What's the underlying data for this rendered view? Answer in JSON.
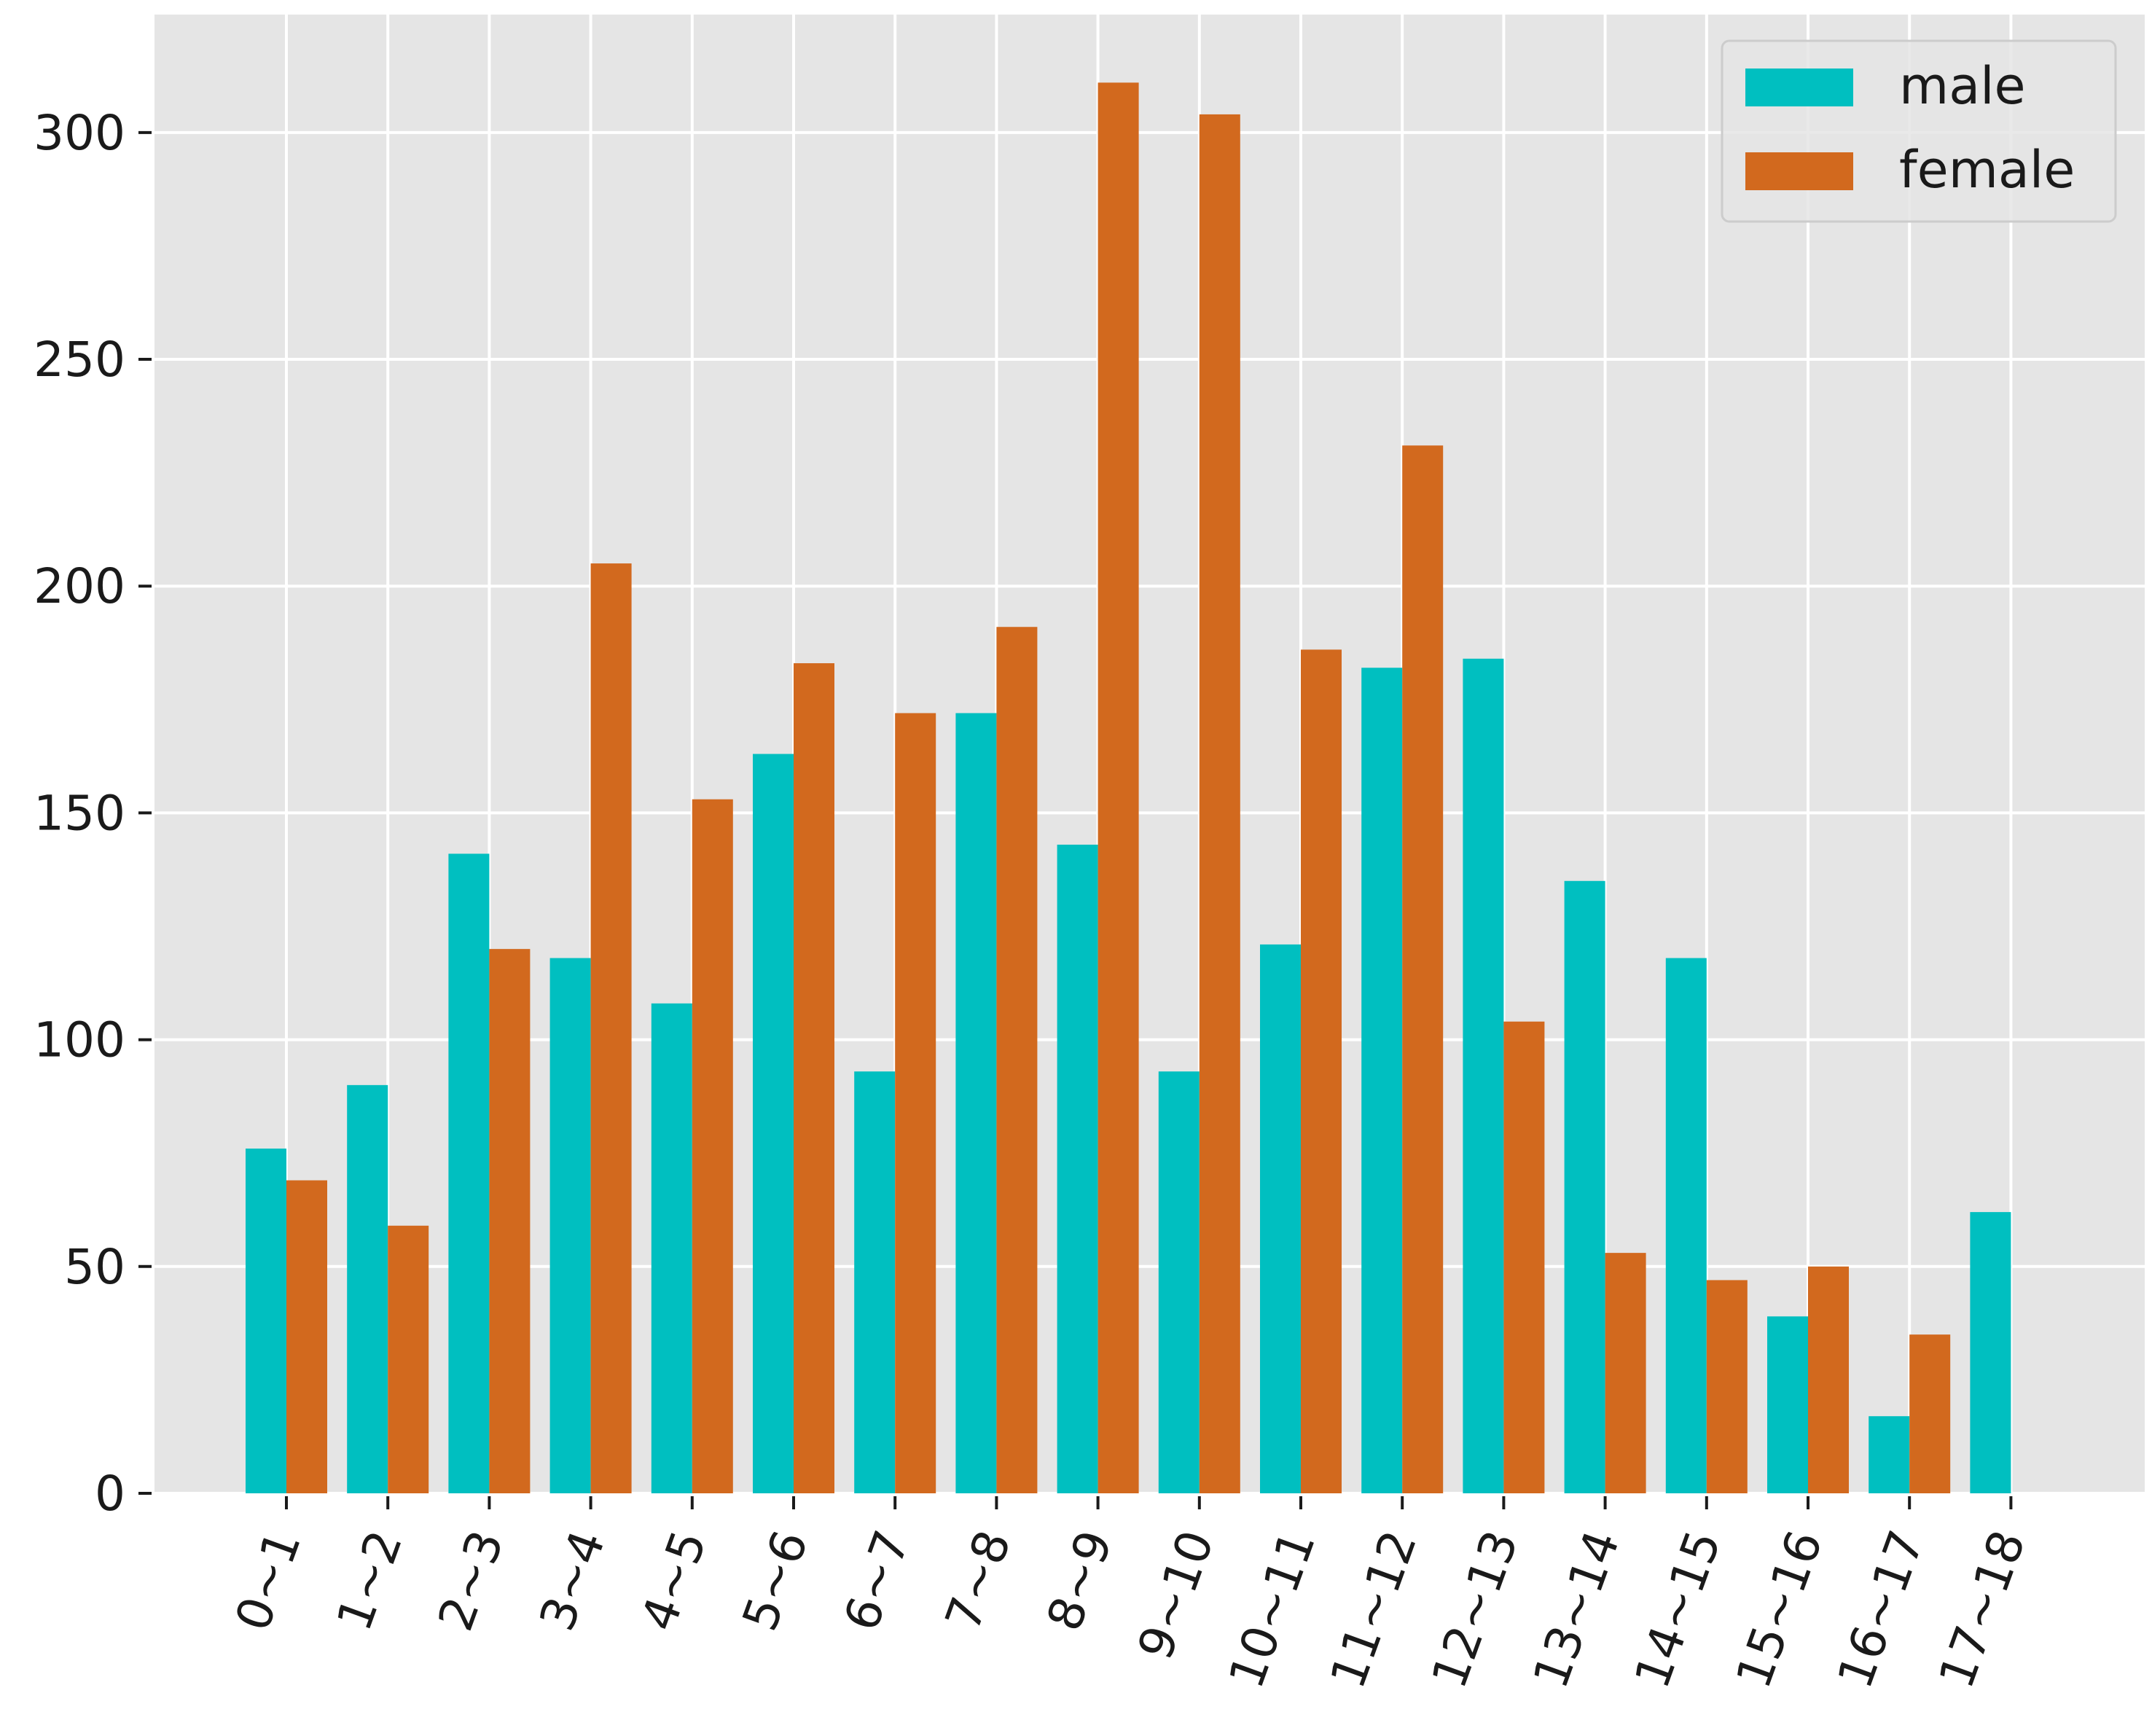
{
  "chart_data": {
    "type": "bar",
    "title": "",
    "xlabel": "",
    "ylabel": "",
    "categories": [
      "0~1",
      "1~2",
      "2~3",
      "3~4",
      "4~5",
      "5~6",
      "6~7",
      "7~8",
      "8~9",
      "9~10",
      "10~11",
      "11~12",
      "12~13",
      "13~14",
      "14~15",
      "15~16",
      "16~17",
      "17~18"
    ],
    "series": [
      {
        "name": "male",
        "color": "#00bfc0",
        "values": [
          76,
          90,
          141,
          118,
          108,
          163,
          93,
          172,
          143,
          93,
          121,
          182,
          184,
          135,
          118,
          39,
          17,
          62
        ]
      },
      {
        "name": "female",
        "color": "#d2691e",
        "values": [
          69,
          59,
          120,
          205,
          153,
          183,
          172,
          191,
          311,
          304,
          186,
          231,
          104,
          53,
          47,
          50,
          35,
          0
        ]
      }
    ],
    "ylim": [
      0,
      326
    ],
    "yticks": [
      0,
      50,
      100,
      150,
      200,
      250,
      300
    ],
    "grid": true,
    "legend_position": "top-right",
    "background_color": "#e5e5e5",
    "grid_color": "#ffffff"
  }
}
